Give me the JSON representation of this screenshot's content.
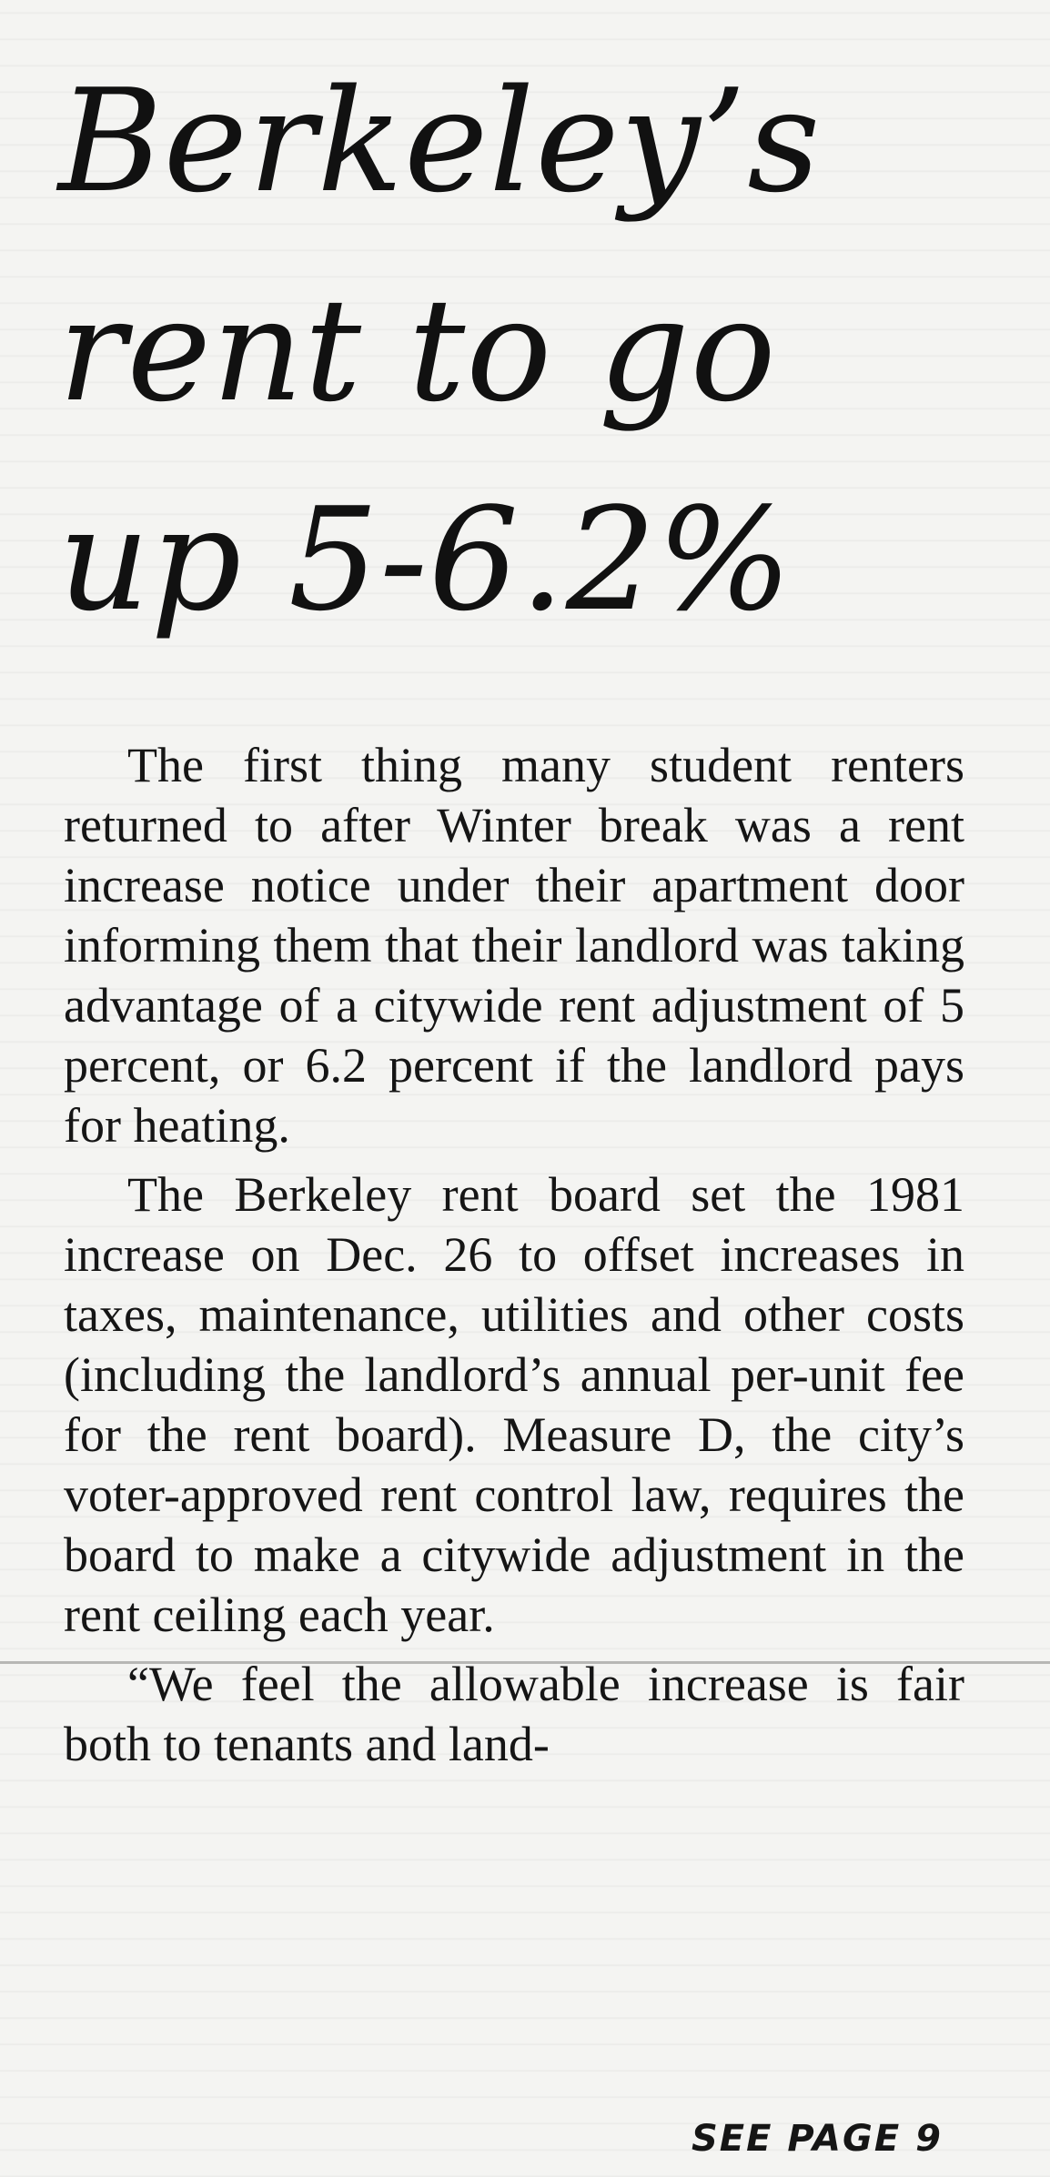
{
  "article": {
    "headline_lines": [
      "Berkeley’s",
      "rent to go",
      "up 5-6.2%"
    ],
    "paragraphs": [
      "The first thing many student renters returned to after Winter break was a rent increase notice under their apartment door informing them that their landlord was taking advantage of a citywide rent adjustment of 5 percent, or 6.2 percent if the landlord pays for heating.",
      "The Berkeley rent board set the 1981 increase on Dec. 26 to offset increases in taxes, maintenance, utilities and other costs (including the landlord’s annual per-unit fee for the rent board). Measure D, the city’s voter-approved rent control law, requires the board to make a citywide adjustment in the rent ceiling each year.",
      "“We feel the allowable increase is fair both to tenants and land-"
    ],
    "jump_line": "SEE PAGE 9"
  }
}
